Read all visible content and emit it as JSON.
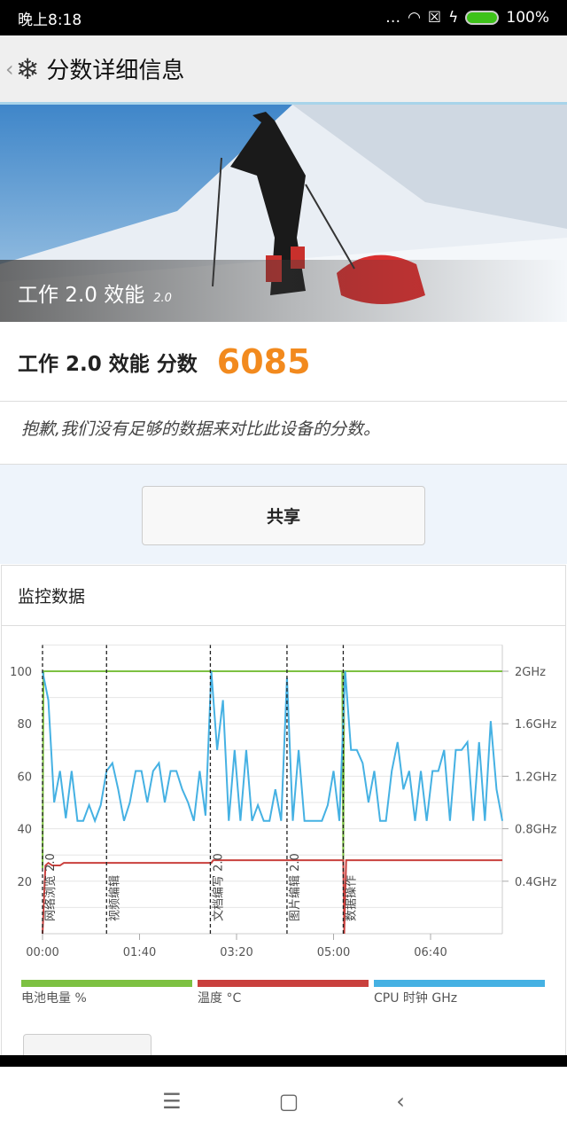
{
  "status_bar": {
    "time": "晚上8:18",
    "battery": "100%",
    "icons": [
      "more-dots-icon",
      "wifi-icon",
      "sim-none-icon",
      "charging-icon",
      "battery-icon"
    ]
  },
  "header": {
    "back": "‹",
    "title": "分数详细信息",
    "logo": "snowflake-icon"
  },
  "hero": {
    "title": "工作 2.0 效能",
    "version": "2.0"
  },
  "score": {
    "label": "工作 2.0 效能 分数",
    "value": "6085",
    "color": "#f28a1e"
  },
  "message": "抱歉,我们没有足够的数据来对比此设备的分数。",
  "share_label": "共享",
  "monitor": {
    "title": "监控数据"
  },
  "chart_data": {
    "type": "line",
    "x_unit": "mm:ss",
    "xticks": [
      "00:00",
      "01:40",
      "03:20",
      "05:00",
      "06:40"
    ],
    "yticks_left": [
      "20",
      "40",
      "60",
      "80",
      "100"
    ],
    "yticks_right": [
      "0.4GHz",
      "0.8GHz",
      "1.2GHz",
      "1.6GHz",
      "2GHz"
    ],
    "ylim_left": [
      0,
      110
    ],
    "grid": true,
    "legend_placement": "bottom",
    "markers": [
      {
        "time": "00:00",
        "label": "网络浏览 2.0"
      },
      {
        "time": "01:06",
        "label": "视频编辑"
      },
      {
        "time": "02:53",
        "label": "文档编写 2.0"
      },
      {
        "time": "04:12",
        "label": "图片编辑 2.0"
      },
      {
        "time": "05:10",
        "label": "数据操作"
      }
    ],
    "series": [
      {
        "name": "电池电量 %",
        "color": "#7dc142",
        "axis": "left",
        "points": [
          [
            "00:00",
            25
          ],
          [
            "00:01",
            100
          ],
          [
            "05:09",
            100
          ],
          [
            "05:10",
            28
          ],
          [
            "05:11",
            100
          ],
          [
            "07:54",
            100
          ]
        ]
      },
      {
        "name": "温度 °C",
        "color": "#c9403d",
        "axis": "left",
        "points": [
          [
            "00:00",
            0
          ],
          [
            "00:03",
            26
          ],
          [
            "00:06",
            27
          ],
          [
            "00:10",
            26
          ],
          [
            "00:18",
            26
          ],
          [
            "00:22",
            27
          ],
          [
            "02:54",
            27
          ],
          [
            "02:56",
            28
          ],
          [
            "05:10",
            28
          ],
          [
            "05:11",
            0
          ],
          [
            "05:13",
            28
          ],
          [
            "07:54",
            28
          ]
        ]
      },
      {
        "name": "CPU 时钟 GHz",
        "color": "#45b1e3",
        "axis": "right",
        "times": [
          "00:00",
          "00:06",
          "00:12",
          "00:18",
          "00:24",
          "00:30",
          "00:36",
          "00:42",
          "00:48",
          "00:54",
          "01:00",
          "01:06",
          "01:12",
          "01:18",
          "01:24",
          "01:30",
          "01:36",
          "01:42",
          "01:48",
          "01:54",
          "02:00",
          "02:06",
          "02:12",
          "02:18",
          "02:24",
          "02:30",
          "02:36",
          "02:42",
          "02:48",
          "02:54",
          "03:00",
          "03:06",
          "03:12",
          "03:18",
          "03:24",
          "03:30",
          "03:36",
          "03:42",
          "03:48",
          "03:54",
          "04:00",
          "04:06",
          "04:12",
          "04:18",
          "04:24",
          "04:30",
          "04:36",
          "04:42",
          "04:48",
          "04:54",
          "05:00",
          "05:06",
          "05:12",
          "05:18",
          "05:24",
          "05:30",
          "05:36",
          "05:42",
          "05:48",
          "05:54",
          "06:00",
          "06:06",
          "06:12",
          "06:18",
          "06:24",
          "06:30",
          "06:36",
          "06:42",
          "06:48",
          "06:54",
          "07:00",
          "07:06",
          "07:12",
          "07:18",
          "07:24",
          "07:30",
          "07:36",
          "07:42",
          "07:48",
          "07:54"
        ],
        "values": [
          2.0,
          1.78,
          1.0,
          1.24,
          0.88,
          1.24,
          0.86,
          0.86,
          0.98,
          0.86,
          0.98,
          1.24,
          1.3,
          1.1,
          0.86,
          1.0,
          1.24,
          1.24,
          1.0,
          1.24,
          1.3,
          1.0,
          1.24,
          1.24,
          1.1,
          1.0,
          0.86,
          1.24,
          0.9,
          2.0,
          1.4,
          1.78,
          0.86,
          1.4,
          0.86,
          1.4,
          0.86,
          0.98,
          0.86,
          0.86,
          1.1,
          0.86,
          1.95,
          0.86,
          1.4,
          0.86,
          0.86,
          0.86,
          0.86,
          0.98,
          1.24,
          0.86,
          2.0,
          1.4,
          1.4,
          1.3,
          1.0,
          1.24,
          0.86,
          0.86,
          1.24,
          1.46,
          1.1,
          1.24,
          0.86,
          1.24,
          0.86,
          1.24,
          1.24,
          1.4,
          0.86,
          1.4,
          1.4,
          1.46,
          0.86,
          1.46,
          0.86,
          1.62,
          1.1,
          0.86
        ]
      }
    ]
  },
  "nav": {
    "menu": "☰",
    "home": "▢",
    "back": "‹"
  }
}
